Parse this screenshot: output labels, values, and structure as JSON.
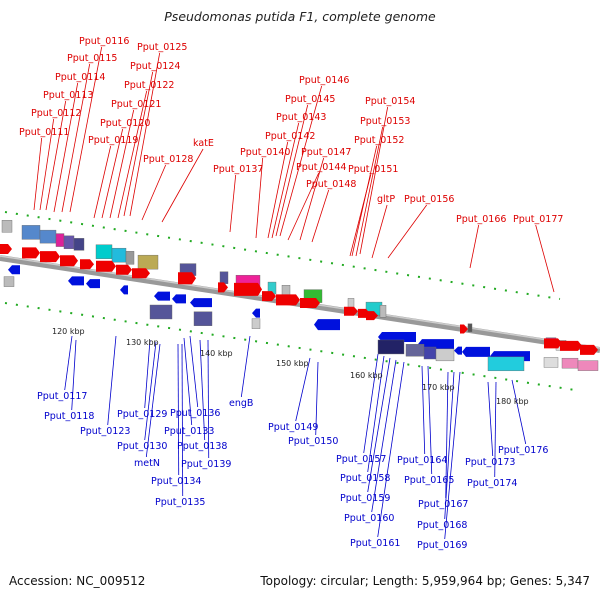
{
  "title": "Pseudomonas putida F1, complete genome",
  "footer": {
    "accession": "Accession: NC_009512",
    "info": "Topology: circular; Length: 5,959,964 bp; Genes: 5,347"
  },
  "colors": {
    "forward_label": "#dd0000",
    "reverse_label": "#0000cc",
    "axis": "#888888",
    "tick": "#22aa22"
  },
  "ticks": [
    "120 kbp",
    "130 kbp",
    "140 kbp",
    "150 kbp",
    "160 kbp",
    "170 kbp",
    "180 kbp"
  ],
  "forward_labels": [
    "Pput_0116",
    "Pput_0125",
    "Pput_0115",
    "Pput_0124",
    "Pput_0114",
    "Pput_0122",
    "Pput_0113",
    "Pput_0121",
    "Pput_0112",
    "Pput_0120",
    "Pput_0111",
    "Pput_0119",
    "katE",
    "Pput_0128",
    "Pput_0146",
    "Pput_0145",
    "Pput_0143",
    "Pput_0142",
    "Pput_0140",
    "Pput_0147",
    "Pput_0137",
    "Pput_0144",
    "Pput_0148",
    "Pput_0154",
    "Pput_0153",
    "Pput_0152",
    "Pput_0151",
    "gltP",
    "Pput_0156",
    "Pput_0166",
    "Pput_0177"
  ],
  "reverse_labels": [
    "Pput_0117",
    "Pput_0118",
    "Pput_0123",
    "Pput_0129",
    "Pput_0130",
    "metN",
    "Pput_0136",
    "Pput_0133",
    "Pput_0138",
    "Pput_0139",
    "Pput_0134",
    "Pput_0135",
    "engB",
    "Pput_0149",
    "Pput_0150",
    "Pput_0157",
    "Pput_0158",
    "Pput_0159",
    "Pput_0160",
    "Pput_0161",
    "Pput_0164",
    "Pput_0165",
    "Pput_0167",
    "Pput_0168",
    "Pput_0169",
    "Pput_0173",
    "Pput_0174",
    "Pput_0176"
  ]
}
